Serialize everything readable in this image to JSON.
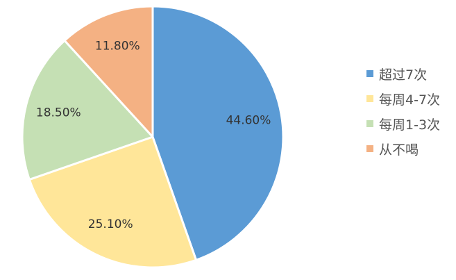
{
  "chart_data": {
    "type": "pie",
    "title": "",
    "legend_position": "right",
    "categories": [
      "超过7次",
      "每周4-7次",
      "每周1-3次",
      "从不喝"
    ],
    "values": [
      44.6,
      25.1,
      18.5,
      11.8
    ],
    "value_labels": [
      "44.60%",
      "25.10%",
      "18.50%",
      "11.80%"
    ],
    "colors": [
      "#5B9BD5",
      "#FFE699",
      "#C5E0B4",
      "#F4B183"
    ]
  }
}
